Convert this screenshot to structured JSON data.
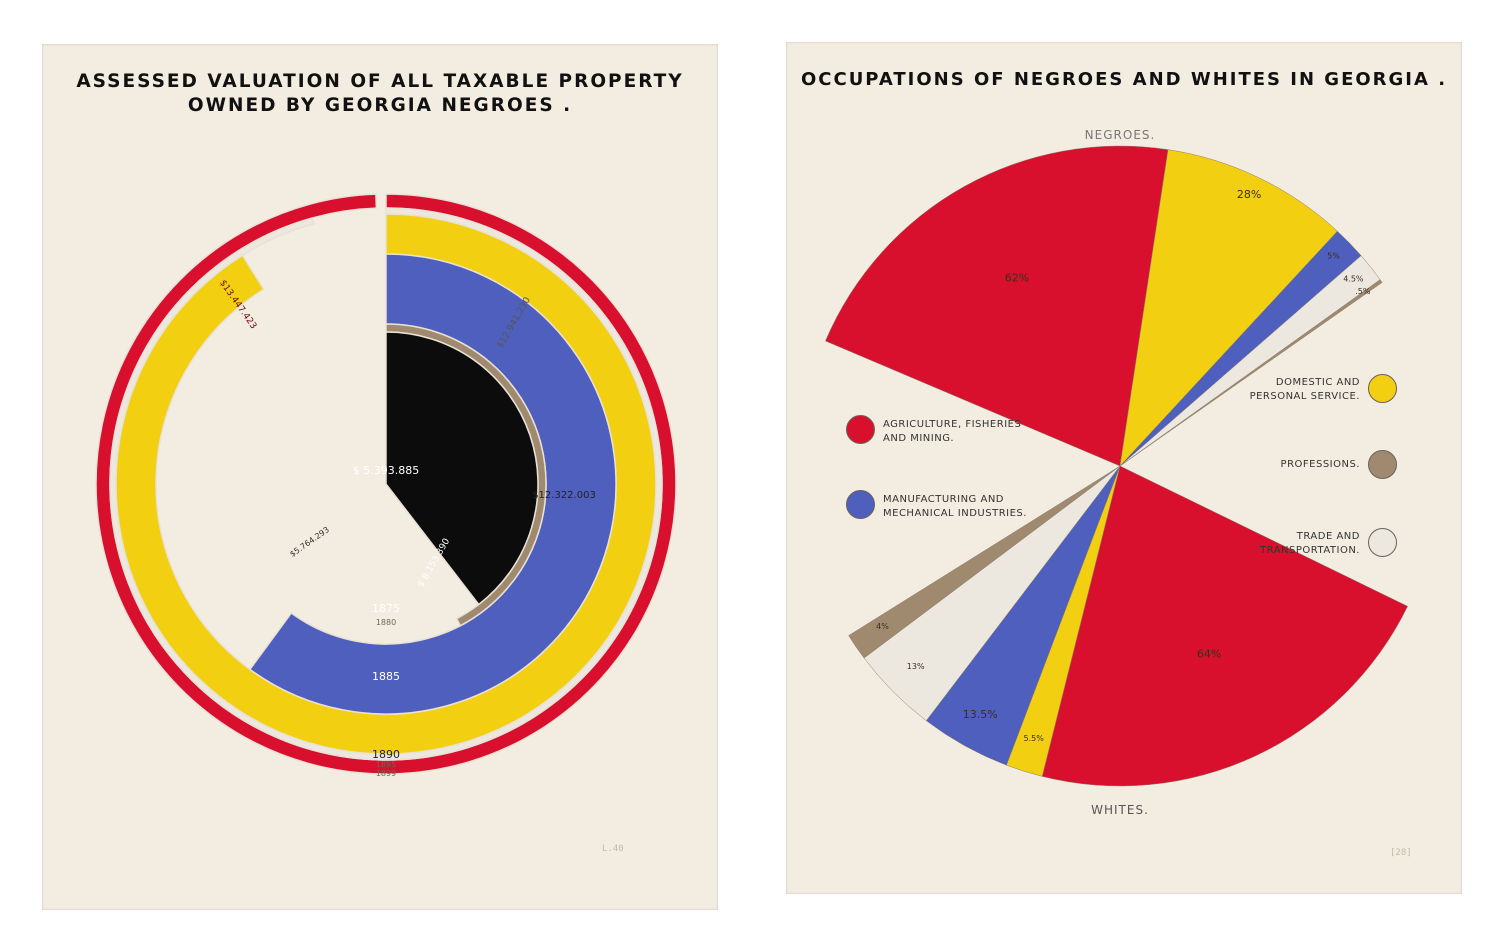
{
  "colors": {
    "paper": "#f3ece1",
    "red": "#d8102d",
    "yellow": "#f3cf12",
    "blue": "#4f5fbd",
    "black": "#0c0c0c",
    "tan": "#a08a6f",
    "white_seg": "#ece7df"
  },
  "chart_data": [
    {
      "type": "radial-ring",
      "title": "ASSESSED VALUATION OF ALL TAXABLE PROPERTY\nOWNED BY GEORGIA NEGROES .",
      "rings": [
        {
          "year": "1875",
          "value": 5393885,
          "label": "$ 5.393.885",
          "color": "black"
        },
        {
          "year": "1880",
          "value": 5764293,
          "label": "$5.764.293",
          "color": "tan"
        },
        {
          "year": "1885",
          "value": 8153390,
          "label": "$ 8.153.390",
          "color": "blue"
        },
        {
          "year": "1890",
          "value": 12322003,
          "label": "$12.322.003",
          "color": "yellow"
        },
        {
          "year": "1895",
          "value": 12941230,
          "label": "$12.941.230",
          "color": "white_seg"
        },
        {
          "year": "1899",
          "value": 13447423,
          "label": "$13.447.423",
          "color": "red"
        }
      ],
      "year_labels": [
        "1875",
        "1880",
        "1885",
        "1890",
        "1895",
        "1899"
      ],
      "page_mark": "L.40"
    },
    {
      "type": "pie",
      "title": "OCCUPATIONS OF NEGROES AND WHITES IN GEORGIA .",
      "groups": [
        "NEGROES.",
        "WHITES."
      ],
      "categories": [
        "AGRICULTURE, FISHERIES\nAND MINING.",
        "DOMESTIC AND\nPERSONAL SERVICE.",
        "MANUFACTURING AND\nMECHANICAL INDUSTRIES.",
        "TRADE AND\nTRANSPORTATION.",
        "PROFESSIONS."
      ],
      "series": [
        {
          "name": "NEGROES.",
          "values": [
            62,
            28,
            5,
            4.5,
            0.5
          ],
          "labels": [
            "62%",
            "28%",
            "5%",
            "4.5%",
            ".5%"
          ]
        },
        {
          "name": "WHITES.",
          "values": [
            64,
            5.5,
            13.5,
            13,
            4
          ],
          "labels": [
            "64%",
            "5.5%",
            "13.5%",
            "13%",
            "4%"
          ]
        }
      ],
      "legend": [
        {
          "label": "AGRICULTURE, FISHERIES\nAND MINING.",
          "color": "red",
          "side": "left"
        },
        {
          "label": "MANUFACTURING AND\nMECHANICAL INDUSTRIES.",
          "color": "blue",
          "side": "left"
        },
        {
          "label": "DOMESTIC AND\nPERSONAL SERVICE.",
          "color": "yellow",
          "side": "right"
        },
        {
          "label": "PROFESSIONS.",
          "color": "tan",
          "side": "right"
        },
        {
          "label": "TRADE AND\nTRANSPORTATION.",
          "color": "white_seg",
          "side": "right"
        }
      ],
      "page_mark": "[28]"
    }
  ]
}
